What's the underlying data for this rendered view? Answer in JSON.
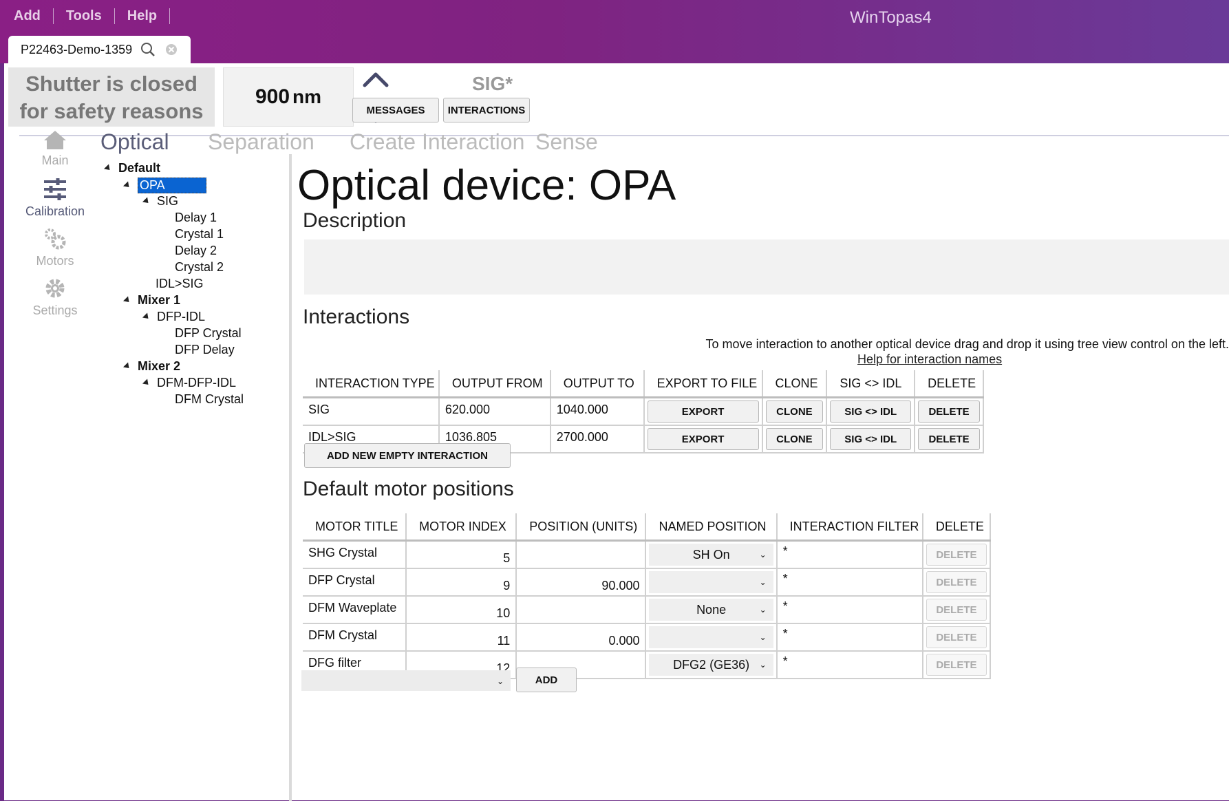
{
  "menu": [
    "Add",
    "Tools",
    "Help"
  ],
  "app_title": "WinTopas4",
  "tab": {
    "label": "P22463-Demo-1359"
  },
  "shutter": {
    "line1": "Shutter is closed",
    "line2": "for safety reasons"
  },
  "wavelength": {
    "value": "900",
    "unit": "nm"
  },
  "sig_title": "SIG*",
  "top_buttons": {
    "messages": "MESSAGES",
    "interactions": "INTERACTIONS"
  },
  "nav": [
    {
      "label": "Main",
      "icon": "home-icon"
    },
    {
      "label": "Calibration",
      "icon": "sliders-icon"
    },
    {
      "label": "Motors",
      "icon": "gears-icon"
    },
    {
      "label": "Settings",
      "icon": "gear-icon"
    }
  ],
  "subtabs": [
    "Optical",
    "Separation",
    "Create Interaction",
    "Sense"
  ],
  "tree": {
    "default": "Default",
    "opa": "OPA",
    "sig": "SIG",
    "delay1": "Delay 1",
    "crystal1": "Crystal 1",
    "delay2": "Delay 2",
    "crystal2": "Crystal 2",
    "idlsig": "IDL>SIG",
    "mixer1": "Mixer 1",
    "dfpidl": "DFP-IDL",
    "dfpcrystal": "DFP Crystal",
    "dfpdelay": "DFP Delay",
    "mixer2": "Mixer 2",
    "dfmdfpidl": "DFM-DFP-IDL",
    "dfmcrystal": "DFM Crystal"
  },
  "device_title": "Optical device: OPA",
  "description_title": "Description",
  "interactions_title": "Interactions",
  "interactions_hint": "To move interaction to another optical device drag and drop it using tree view control on the left.",
  "interactions_help": "Help for interaction names",
  "interactions_table": {
    "headers": [
      "INTERACTION TYPE",
      "OUTPUT FROM",
      "OUTPUT TO",
      "EXPORT TO FILE",
      "CLONE",
      "SIG <> IDL",
      "DELETE"
    ],
    "rows": [
      {
        "type": "SIG",
        "from": "620.000",
        "to": "1040.000"
      },
      {
        "type": "IDL>SIG",
        "from": "1036.805",
        "to": "2700.000"
      }
    ],
    "btn_export": "EXPORT",
    "btn_clone": "CLONE",
    "btn_swap": "SIG <> IDL",
    "btn_delete": "DELETE"
  },
  "add_interaction": "ADD NEW EMPTY INTERACTION",
  "motors_title": "Default motor positions",
  "motors_table": {
    "headers": [
      "MOTOR TITLE",
      "MOTOR INDEX",
      "POSITION (UNITS)",
      "NAMED POSITION",
      "INTERACTION FILTER",
      "DELETE"
    ],
    "rows": [
      {
        "title": "SHG Crystal",
        "index": "5",
        "position": "",
        "named": "SH On",
        "filter": "*"
      },
      {
        "title": "DFP Crystal",
        "index": "9",
        "position": "90.000",
        "named": "",
        "filter": "*"
      },
      {
        "title": "DFM Waveplate",
        "index": "10",
        "position": "",
        "named": "None",
        "filter": "*"
      },
      {
        "title": "DFM Crystal",
        "index": "11",
        "position": "0.000",
        "named": "",
        "filter": "*"
      },
      {
        "title": "DFG filter",
        "index": "12",
        "position": "",
        "named": "DFG2 (GE36)",
        "filter": "*"
      }
    ],
    "btn_delete": "DELETE"
  },
  "add_motor": {
    "select_value": "",
    "button": "ADD"
  },
  "colors": {
    "accent": "#8a1f85",
    "selection": "#0a64d2",
    "nav_active": "#565a78"
  }
}
